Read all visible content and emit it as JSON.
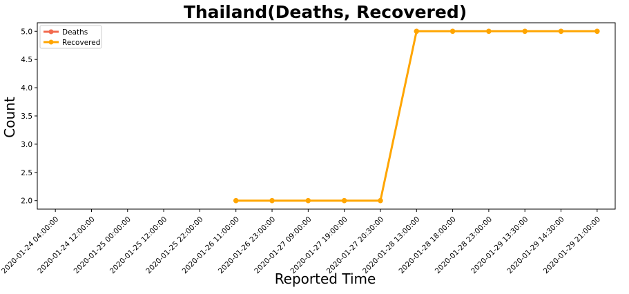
{
  "chart_data": {
    "type": "line",
    "title": "Thailand(Deaths, Recovered)",
    "xlabel": "Reported Time",
    "ylabel": "Count",
    "categories": [
      "2020-01-24 04:00:00",
      "2020-01-24 12:00:00",
      "2020-01-25 00:00:00",
      "2020-01-25 12:00:00",
      "2020-01-25 22:00:00",
      "2020-01-26 11:00:00",
      "2020-01-26 23:00:00",
      "2020-01-27 09:00:00",
      "2020-01-27 19:00:00",
      "2020-01-27 20:30:00",
      "2020-01-28 13:00:00",
      "2020-01-28 18:00:00",
      "2020-01-28 23:00:00",
      "2020-01-29 13:30:00",
      "2020-01-29 14:30:00",
      "2020-01-29 21:00:00"
    ],
    "series": [
      {
        "name": "Deaths",
        "color": "#f26b4f",
        "values": [
          null,
          null,
          null,
          null,
          null,
          null,
          null,
          null,
          null,
          null,
          null,
          null,
          null,
          null,
          null,
          null
        ]
      },
      {
        "name": "Recovered",
        "color": "#ffa500",
        "values": [
          null,
          null,
          null,
          null,
          null,
          2,
          2,
          2,
          2,
          2,
          5,
          5,
          5,
          5,
          5,
          5
        ]
      }
    ],
    "ylim": [
      1.85,
      5.15
    ],
    "yticks": [
      "2.0",
      "2.5",
      "3.0",
      "3.5",
      "4.0",
      "4.5",
      "5.0"
    ],
    "grid": false,
    "legend_position": "upper-left"
  }
}
